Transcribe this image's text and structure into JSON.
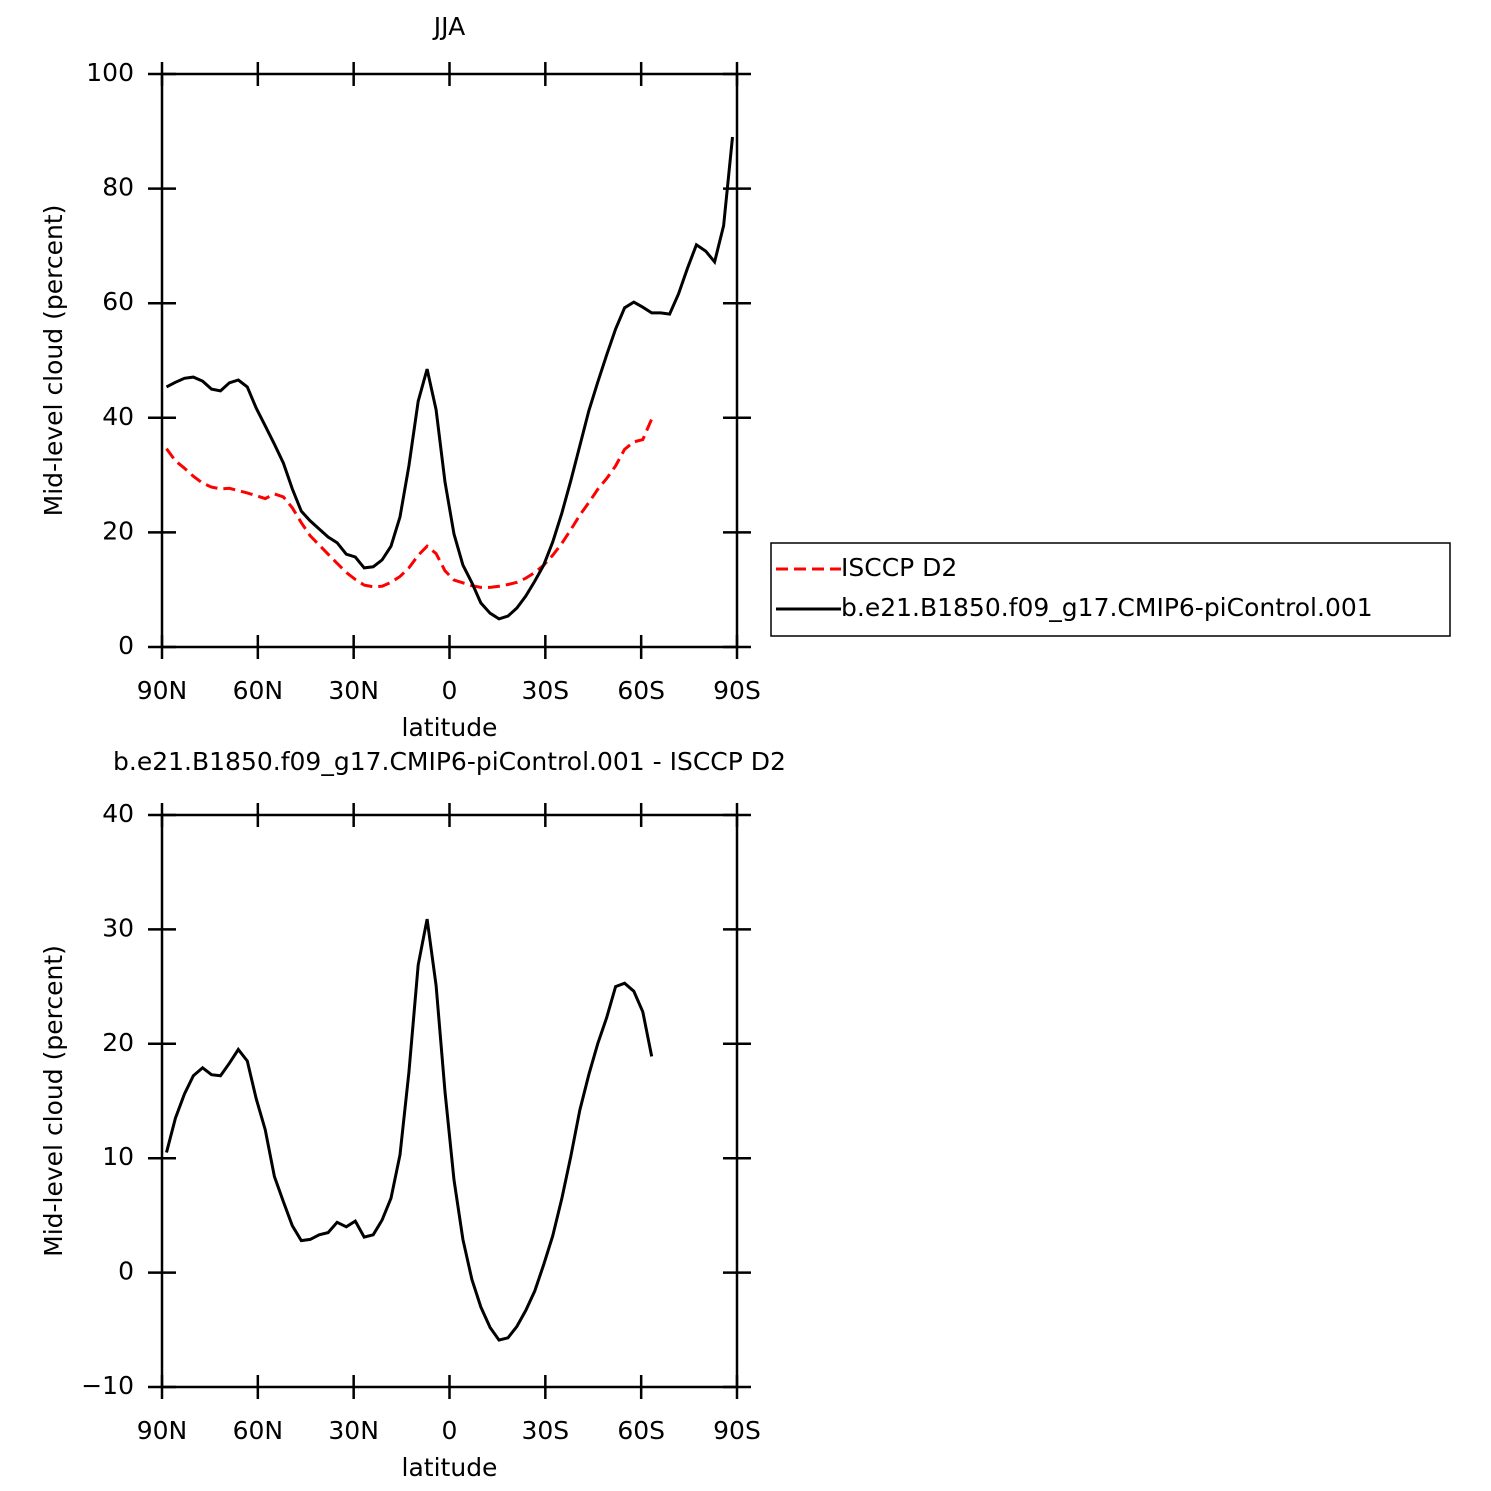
{
  "chart_data": [
    {
      "type": "line",
      "title": "JJA",
      "xlabel": "latitude",
      "ylabel": "Mid-level cloud (percent)",
      "x": [
        88.6,
        85.8,
        83.0,
        80.2,
        77.3,
        74.5,
        71.7,
        68.9,
        66.1,
        63.3,
        60.5,
        57.7,
        54.8,
        52.0,
        49.2,
        46.4,
        43.6,
        40.8,
        38.0,
        35.2,
        32.3,
        29.5,
        26.7,
        23.9,
        21.1,
        18.3,
        15.5,
        12.7,
        9.8,
        7.0,
        4.2,
        1.4,
        -1.4,
        -4.2,
        -7.0,
        -9.8,
        -12.7,
        -15.5,
        -18.3,
        -21.1,
        -23.9,
        -26.7,
        -29.5,
        -32.3,
        -35.2,
        -38.0,
        -40.8,
        -43.6,
        -46.4,
        -49.2,
        -52.0,
        -54.8,
        -57.7,
        -60.5,
        -63.3,
        -66.1,
        -68.9,
        -71.7,
        -74.5,
        -77.3,
        -80.2,
        -83.0,
        -85.8,
        -88.6
      ],
      "series": [
        {
          "name": "ISCCP D2",
          "color": "#ff0000",
          "dash": "dashed",
          "values": [
            34.6,
            32.5,
            31.2,
            29.8,
            28.6,
            27.9,
            27.6,
            27.7,
            27.3,
            26.9,
            26.4,
            25.9,
            26.7,
            26.2,
            24.3,
            21.7,
            19.4,
            17.8,
            16.2,
            14.6,
            13.0,
            11.8,
            10.8,
            10.5,
            10.6,
            11.3,
            12.3,
            13.8,
            16.0,
            17.6,
            16.3,
            13.3,
            11.7,
            11.2,
            10.7,
            10.4,
            10.4,
            10.6,
            10.9,
            11.3,
            12.0,
            13.0,
            14.3,
            16.0,
            18.1,
            20.5,
            23.0,
            25.2,
            27.5,
            29.4,
            31.6,
            34.5,
            35.8,
            36.2,
            39.8,
            null,
            null,
            null,
            null,
            null,
            null,
            null,
            null,
            null
          ]
        },
        {
          "name": "b.e21.B1850.f09_g17.CMIP6-piControl.001",
          "color": "#000000",
          "dash": "solid",
          "values": [
            45.4,
            46.2,
            46.9,
            47.1,
            46.4,
            45.0,
            44.7,
            46.1,
            46.6,
            45.4,
            41.7,
            38.6,
            35.4,
            32.1,
            27.6,
            23.7,
            22.0,
            20.6,
            19.2,
            18.2,
            16.2,
            15.7,
            13.8,
            14.0,
            15.2,
            17.6,
            22.7,
            31.6,
            42.9,
            48.5,
            41.4,
            28.8,
            19.7,
            14.3,
            11.2,
            7.7,
            5.9,
            4.9,
            5.4,
            6.8,
            8.9,
            11.5,
            14.3,
            18.3,
            23.4,
            29.1,
            35.1,
            41.2,
            46.2,
            51.0,
            55.5,
            59.2,
            60.2,
            59.3,
            58.3,
            58.3,
            58.1,
            61.6,
            66.1,
            70.2,
            69.1,
            67.2,
            73.5,
            89.0
          ]
        }
      ],
      "xlim": [
        90,
        -90
      ],
      "xticks": [
        {
          "value": 90,
          "label": "90N"
        },
        {
          "value": 60,
          "label": "60N"
        },
        {
          "value": 30,
          "label": "30N"
        },
        0,
        {
          "value": -30,
          "label": "30S"
        },
        {
          "value": -60,
          "label": "60S"
        },
        {
          "value": -90,
          "label": "90S"
        }
      ],
      "ylim": [
        0,
        100
      ],
      "yticks": [
        0,
        20,
        40,
        60,
        80,
        100
      ],
      "legend": "right"
    },
    {
      "type": "line",
      "title": "b.e21.B1850.f09_g17.CMIP6-piControl.001 - ISCCP D2",
      "xlabel": "latitude",
      "ylabel": "Mid-level cloud (percent)",
      "x": [
        88.6,
        85.8,
        83.0,
        80.2,
        77.3,
        74.5,
        71.7,
        68.9,
        66.1,
        63.3,
        60.5,
        57.7,
        54.8,
        52.0,
        49.2,
        46.4,
        43.6,
        40.8,
        38.0,
        35.2,
        32.3,
        29.5,
        26.7,
        23.9,
        21.1,
        18.3,
        15.5,
        12.7,
        9.8,
        7.0,
        4.2,
        1.4,
        -1.4,
        -4.2,
        -7.0,
        -9.8,
        -12.7,
        -15.5,
        -18.3,
        -21.1,
        -23.9,
        -26.7,
        -29.5,
        -32.3,
        -35.2,
        -38.0,
        -40.8,
        -43.6,
        -46.4,
        -49.2,
        -52.0,
        -54.8,
        -57.7,
        -60.5,
        -63.3,
        -66.1,
        -68.9,
        -71.7,
        -74.5,
        -77.3,
        -80.2,
        -83.0,
        -85.8,
        -88.6
      ],
      "series": [
        {
          "color": "#000000",
          "dash": "solid",
          "values": [
            10.5,
            13.5,
            15.6,
            17.2,
            17.9,
            17.3,
            17.2,
            18.3,
            19.5,
            18.5,
            15.2,
            12.5,
            8.4,
            6.2,
            4.1,
            2.8,
            2.9,
            3.3,
            3.5,
            4.4,
            4.0,
            4.5,
            3.1,
            3.3,
            4.6,
            6.5,
            10.3,
            17.5,
            26.9,
            30.9,
            25.1,
            15.8,
            8.1,
            2.9,
            -0.6,
            -3.0,
            -4.8,
            -5.9,
            -5.7,
            -4.7,
            -3.3,
            -1.6,
            0.7,
            3.2,
            6.5,
            10.2,
            14.2,
            17.3,
            20.0,
            22.3,
            25.0,
            25.3,
            24.6,
            22.8,
            18.9,
            null,
            null,
            null,
            null,
            null,
            null,
            null,
            null,
            null
          ]
        }
      ],
      "xlim": [
        90,
        -90
      ],
      "xticks": [
        {
          "value": 90,
          "label": "90N"
        },
        {
          "value": 60,
          "label": "60N"
        },
        {
          "value": 30,
          "label": "30N"
        },
        0,
        {
          "value": -30,
          "label": "30S"
        },
        {
          "value": -60,
          "label": "60S"
        },
        {
          "value": -90,
          "label": "90S"
        }
      ],
      "ylim": [
        -10,
        40
      ],
      "yticks": [
        {
          "value": -10,
          "label": "−10"
        },
        0,
        10,
        20,
        30,
        40
      ]
    }
  ]
}
